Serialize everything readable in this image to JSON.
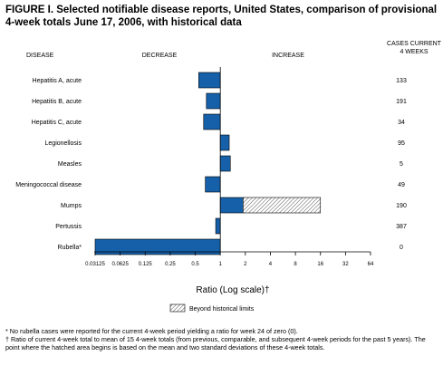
{
  "title": "FIGURE I. Selected notifiable disease reports, United States, comparison of provisional 4-week totals June 17, 2006, with historical data",
  "headers": {
    "disease": "DISEASE",
    "decrease": "DECREASE",
    "increase": "INCREASE",
    "cases_line1": "CASES CURRENT",
    "cases_line2": "4 WEEKS"
  },
  "legend": {
    "label": "Beyond historical limits"
  },
  "footnotes": [
    "* No rubella cases were reported for the current 4-week period yielding a ratio for week 24 of zero (0).",
    "† Ratio of current 4-week total to mean of 15 4-week totals (from previous, comparable, and subsequent 4-week periods for the past 5 years). The point where the hatched area begins is based on the mean and two standard deviations of these 4-week totals."
  ],
  "colors": {
    "bar": "#1560a8",
    "hatch": "#444444"
  },
  "chart_data": {
    "type": "bar",
    "orientation": "horizontal",
    "scale": "log2",
    "xlabel": "Ratio (Log scale)†",
    "xlim": [
      0.03125,
      64
    ],
    "xticks": [
      "0.03125",
      "0.0625",
      "0.125",
      "0.25",
      "0.5",
      "1",
      "2",
      "4",
      "8",
      "16",
      "32",
      "64"
    ],
    "categories": [
      "Hepatitis A, acute",
      "Hepatitis B, acute",
      "Hepatitis C, acute",
      "Legionellosis",
      "Measles",
      "Meningococcal disease",
      "Mumps",
      "Pertussis",
      "Rubella*"
    ],
    "values": [
      0.55,
      0.68,
      0.63,
      1.28,
      1.32,
      0.66,
      16.0,
      0.88,
      0.03125
    ],
    "hatched_from": [
      null,
      null,
      null,
      null,
      null,
      null,
      1.88,
      null,
      null
    ],
    "cases_current_4_weeks": [
      "133",
      "191",
      "34",
      "95",
      "5",
      "49",
      "190",
      "387",
      "0"
    ]
  }
}
